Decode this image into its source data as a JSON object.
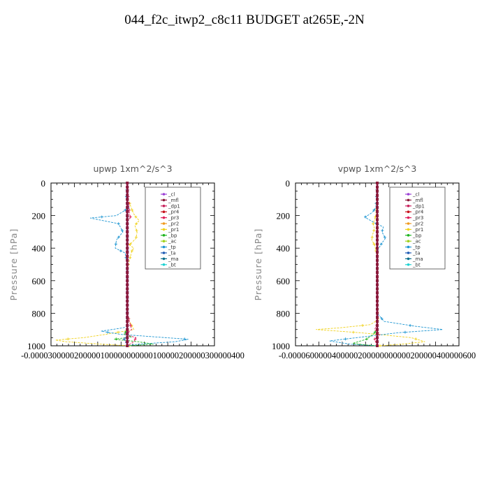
{
  "title": "044_f2c_itwp2_c8c11  BUDGET at265E,-2N",
  "legend_series": [
    {
      "name": "_cl",
      "color": "#9b3fd6"
    },
    {
      "name": "_mfl",
      "color": "#8b1a3a"
    },
    {
      "name": "_dp1",
      "color": "#c81e5a"
    },
    {
      "name": "_pr4",
      "color": "#c8141e"
    },
    {
      "name": "_pr3",
      "color": "#e0205a"
    },
    {
      "name": "_pr2",
      "color": "#f09a1e"
    },
    {
      "name": "_pr1",
      "color": "#f0d21e"
    },
    {
      "name": "_bp",
      "color": "#1eb41e"
    },
    {
      "name": "_ac",
      "color": "#a0d21e"
    },
    {
      "name": "_tp",
      "color": "#1e96d2"
    },
    {
      "name": "_ta",
      "color": "#1e5ab4"
    },
    {
      "name": "_ma",
      "color": "#0a6e8c"
    },
    {
      "name": "_bt",
      "color": "#1ed2d2"
    }
  ],
  "chart_data": [
    {
      "type": "line",
      "title": "upwp   1xm^2/s^3",
      "ylabel": "Pressure [hPa]",
      "ylim": [
        1000,
        0
      ],
      "yticks": [
        "0",
        "200",
        "400",
        "600",
        "800",
        "1000"
      ],
      "xlim": [
        -3.5e-05,
        4e-05
      ],
      "xtick_text": "-0.0000300000200000100000000000100000200000300000400",
      "legend_position": "top-right",
      "series": [
        {
          "name": "_pr1",
          "x": [
            0,
            5e-07,
            2e-06,
            3e-06,
            4e-06,
            5.5e-06,
            3.5e-06,
            4.5e-06,
            4e-06,
            1e-06,
            3e-06,
            2e-06,
            1.5e-06,
            5e-07,
            0,
            0,
            0,
            0,
            0,
            0,
            1e-06,
            3e-06,
            -1e-05,
            -2e-05,
            -3.3e-05,
            -2.8e-05,
            -1.2e-05,
            1e-06
          ],
          "y": [
            0,
            100,
            160,
            190,
            210,
            230,
            260,
            300,
            340,
            380,
            400,
            420,
            450,
            500,
            550,
            600,
            650,
            700,
            750,
            800,
            850,
            900,
            930,
            950,
            965,
            975,
            990,
            1000
          ]
        },
        {
          "name": "_tp",
          "x": [
            0,
            -5e-07,
            1e-06,
            -2.5e-06,
            -5e-06,
            -1.7e-05,
            -4e-06,
            -2e-06,
            -5e-06,
            -5.5e-06,
            -1e-06,
            0,
            0,
            0,
            0,
            0,
            0,
            -2e-06,
            -1.2e-05,
            -3e-06,
            2.8e-05,
            2.2e-05,
            5e-06,
            0
          ],
          "y": [
            0,
            100,
            150,
            180,
            200,
            215,
            250,
            300,
            350,
            400,
            430,
            500,
            600,
            700,
            800,
            850,
            880,
            890,
            910,
            930,
            960,
            975,
            990,
            1000
          ]
        },
        {
          "name": "_bp",
          "x": [
            0,
            0,
            0,
            0,
            -1.5e-06,
            2e-06,
            -6e-06,
            5e-06,
            1.2e-05,
            0
          ],
          "y": [
            0,
            500,
            800,
            900,
            930,
            945,
            960,
            975,
            990,
            1000
          ]
        },
        {
          "name": "_pr3",
          "x": [
            0,
            1e-06,
            1.5e-06,
            0,
            0,
            2e-06,
            -1e-06,
            4e-06,
            3e-06,
            0
          ],
          "y": [
            0,
            190,
            210,
            240,
            800,
            900,
            930,
            950,
            975,
            1000
          ]
        },
        {
          "name": "_ta",
          "x": [
            0,
            0,
            0,
            -1.5e-06,
            -5e-07,
            0
          ],
          "y": [
            0,
            800,
            940,
            960,
            985,
            1000
          ]
        },
        {
          "name": "_cl",
          "x": [
            0,
            0,
            0,
            0,
            0
          ],
          "y": [
            0,
            250,
            500,
            750,
            1000
          ]
        },
        {
          "name": "_mfl",
          "x": [
            0,
            0,
            0,
            0,
            0
          ],
          "y": [
            0,
            250,
            500,
            750,
            1000
          ]
        }
      ]
    },
    {
      "type": "line",
      "title": "vpwp   1xm^2/s^3",
      "ylabel": "Pressure [hPa]",
      "ylim": [
        1000,
        0
      ],
      "yticks": [
        "0",
        "200",
        "400",
        "600",
        "800",
        "1000"
      ],
      "xlim": [
        -6e-05,
        6e-05
      ],
      "xtick_text": "-0.0000600000400000200000000000200000400000600",
      "legend_position": "top-right",
      "series": [
        {
          "name": "_pr1",
          "x": [
            0,
            -1e-06,
            -3e-06,
            -2e-06,
            -3.5e-06,
            -4e-06,
            -2e-06,
            0,
            0,
            0,
            5e-07,
            -5e-06,
            -2.8e-05,
            -4.5e-05,
            -1.2e-05,
            2.5e-05,
            3.5e-05,
            1.8e-05,
            2e-06
          ],
          "y": [
            0,
            200,
            250,
            280,
            320,
            350,
            380,
            450,
            600,
            750,
            840,
            870,
            890,
            900,
            920,
            950,
            975,
            990,
            1000
          ]
        },
        {
          "name": "_tp",
          "x": [
            0,
            -1e-06,
            -3.5e-06,
            -9e-06,
            -3e-06,
            4.5e-06,
            3.5e-06,
            6e-06,
            2.5e-06,
            0,
            0,
            0,
            5e-06,
            2.8e-05,
            4.8e-05,
            1.5e-05,
            -1.5e-05,
            -3.5e-05,
            -2e-05,
            0
          ],
          "y": [
            0,
            150,
            180,
            210,
            240,
            270,
            300,
            340,
            380,
            420,
            600,
            800,
            850,
            880,
            900,
            920,
            950,
            970,
            990,
            1000
          ]
        },
        {
          "name": "_bp",
          "x": [
            0,
            0,
            -3e-06,
            -8e-06,
            -1.8e-05,
            -8e-06,
            0
          ],
          "y": [
            0,
            900,
            930,
            960,
            985,
            995,
            1000
          ]
        },
        {
          "name": "_pr3",
          "x": [
            0,
            0,
            -2e-06,
            2e-06,
            -2e-06,
            0
          ],
          "y": [
            0,
            870,
            900,
            930,
            960,
            1000
          ]
        },
        {
          "name": "_cl",
          "x": [
            0,
            0,
            0,
            0,
            0
          ],
          "y": [
            0,
            250,
            500,
            750,
            1000
          ]
        },
        {
          "name": "_mfl",
          "x": [
            0,
            0,
            0,
            0,
            0
          ],
          "y": [
            0,
            250,
            500,
            750,
            1000
          ]
        }
      ]
    }
  ]
}
